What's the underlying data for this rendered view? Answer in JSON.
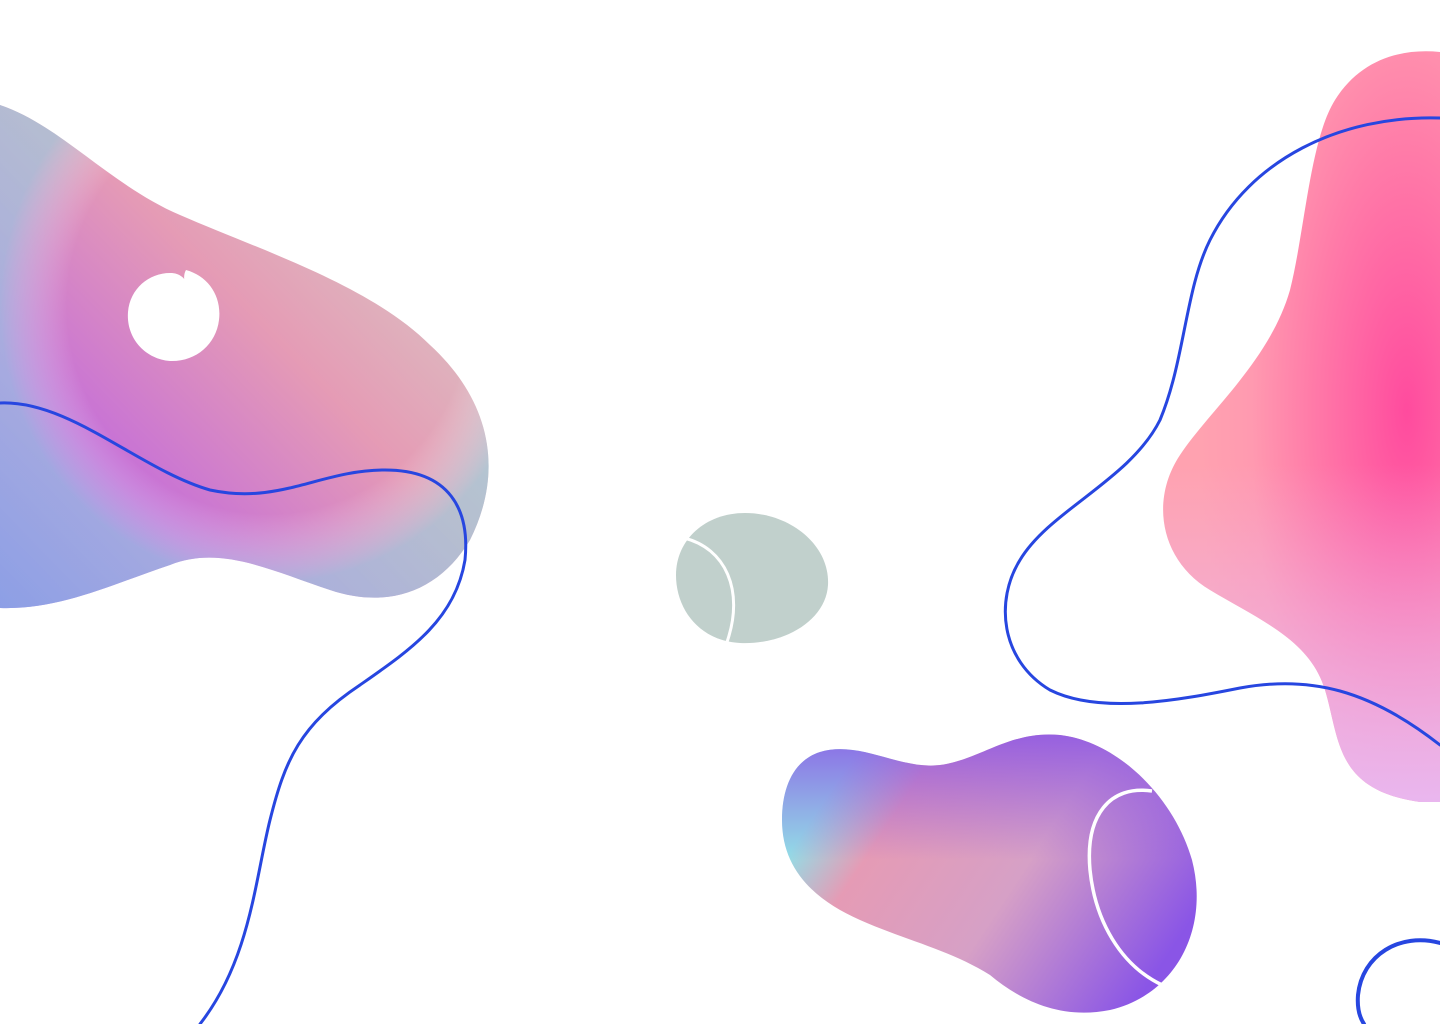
{
  "background": {
    "color": "#ffffff"
  },
  "colors": {
    "line": "#2746e0",
    "white_accent": "#ffffff",
    "gray_blob": "#c1d0cc",
    "gradient_purple": "#8a55e6",
    "gradient_pink": "#e79ab5",
    "gradient_cyan": "#93dde6",
    "gradient_hot_pink": "#ff4b9e",
    "gradient_light_pink": "#ff9ab0",
    "gradient_lavender": "#e8b8f2"
  },
  "shapes": [
    {
      "name": "left-gradient-blob",
      "kind": "gradient blob"
    },
    {
      "name": "left-white-circle",
      "kind": "white circle"
    },
    {
      "name": "center-gray-blob",
      "kind": "gray blob"
    },
    {
      "name": "bottom-gradient-blob",
      "kind": "gradient blob"
    },
    {
      "name": "right-pink-blob",
      "kind": "gradient blob"
    },
    {
      "name": "left-wavy-line",
      "kind": "line"
    },
    {
      "name": "right-wavy-line",
      "kind": "line"
    },
    {
      "name": "bottom-right-ring",
      "kind": "line"
    }
  ]
}
